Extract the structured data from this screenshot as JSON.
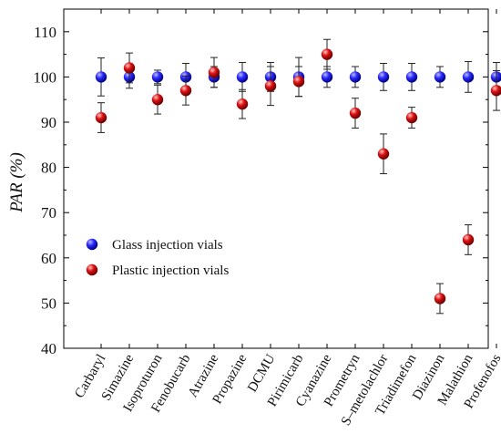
{
  "chart_data": {
    "type": "scatter",
    "ylabel": "PAR (%)",
    "ylim": [
      40,
      115
    ],
    "yticks": [
      40,
      50,
      60,
      70,
      80,
      90,
      100,
      110
    ],
    "grid": false,
    "legend_position": "center-left",
    "categories": [
      "Carbaryl",
      "Simazine",
      "Isoproturon",
      "Fenobucarb",
      "Atrazine",
      "Propazine",
      "DCMU",
      "Pirimicarb",
      "Cyanazine",
      "Prometryn",
      "S–metolachlor",
      "Triadimefon",
      "Diazinon",
      "Malathion",
      "Profenofos"
    ],
    "series": [
      {
        "name": "Glass injection vials",
        "color": "#1a1aff",
        "values": [
          100,
          100,
          100,
          100,
          100,
          100,
          100,
          100,
          100,
          100,
          100,
          100,
          100,
          100,
          100
        ],
        "errors": [
          4.2,
          2.5,
          1.5,
          3.0,
          2.3,
          3.2,
          3.2,
          4.3,
          2.3,
          2.3,
          3.0,
          3.0,
          2.3,
          3.4,
          3.2
        ]
      },
      {
        "name": "Plastic injection vials",
        "color": "#cc0000",
        "values": [
          91,
          102,
          95,
          97,
          101,
          94,
          98,
          99,
          105,
          92,
          83,
          91,
          51,
          64,
          97
        ],
        "errors": [
          3.3,
          3.3,
          3.2,
          3.2,
          3.3,
          3.2,
          4.3,
          3.3,
          3.3,
          3.3,
          4.4,
          2.3,
          3.3,
          3.3,
          4.4
        ]
      }
    ]
  }
}
